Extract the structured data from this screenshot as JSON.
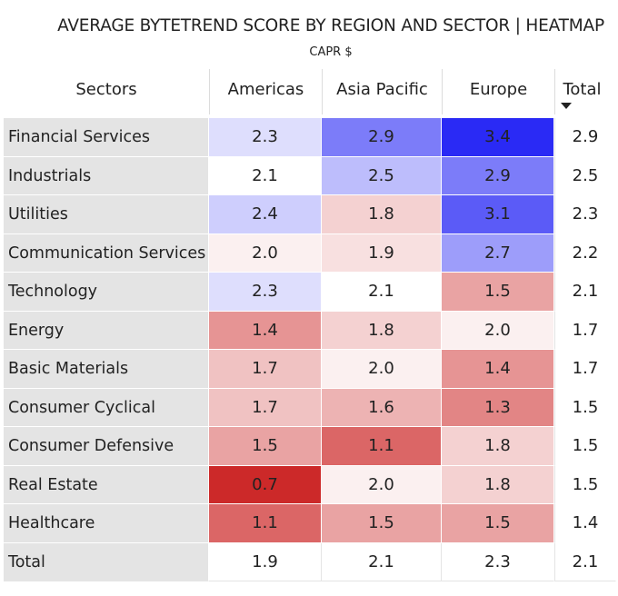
{
  "title": "AVERAGE BYTETREND SCORE BY REGION AND SECTOR | HEATMAP",
  "subtitle": "CAPR $",
  "colors": {
    "high": "#2a2af5",
    "mid": "#ffffff",
    "low": "#cc2929"
  },
  "chart_data": {
    "type": "heatmap",
    "title": "AVERAGE BYTETREND SCORE BY REGION AND SECTOR | HEATMAP",
    "subtitle": "CAPR $",
    "row_header": "Sectors",
    "columns": [
      "Americas",
      "Asia Pacific",
      "Europe"
    ],
    "total_label": "Total",
    "sorted_by": "Total",
    "sort_direction": "descending",
    "color_scale": {
      "min": 0.7,
      "center": 2.1,
      "max": 3.4
    },
    "rows": [
      {
        "label": "Financial Services",
        "values": [
          "2.3",
          "2.9",
          "3.4"
        ],
        "total": "2.9"
      },
      {
        "label": "Industrials",
        "values": [
          "2.1",
          "2.5",
          "2.9"
        ],
        "total": "2.5"
      },
      {
        "label": "Utilities",
        "values": [
          "2.4",
          "1.8",
          "3.1"
        ],
        "total": "2.3"
      },
      {
        "label": "Communication Services",
        "values": [
          "2.0",
          "1.9",
          "2.7"
        ],
        "total": "2.2"
      },
      {
        "label": "Technology",
        "values": [
          "2.3",
          "2.1",
          "1.5"
        ],
        "total": "2.1"
      },
      {
        "label": "Energy",
        "values": [
          "1.4",
          "1.8",
          "2.0"
        ],
        "total": "1.7"
      },
      {
        "label": "Basic Materials",
        "values": [
          "1.7",
          "2.0",
          "1.4"
        ],
        "total": "1.7"
      },
      {
        "label": "Consumer Cyclical",
        "values": [
          "1.7",
          "1.6",
          "1.3"
        ],
        "total": "1.5"
      },
      {
        "label": "Consumer Defensive",
        "values": [
          "1.5",
          "1.1",
          "1.8"
        ],
        "total": "1.5"
      },
      {
        "label": "Real Estate",
        "values": [
          "0.7",
          "2.0",
          "1.8"
        ],
        "total": "1.5"
      },
      {
        "label": "Healthcare",
        "values": [
          "1.1",
          "1.5",
          "1.5"
        ],
        "total": "1.4"
      }
    ],
    "totals_row": {
      "label": "Total",
      "values": [
        "1.9",
        "2.1",
        "2.3"
      ],
      "total": "2.1"
    }
  }
}
